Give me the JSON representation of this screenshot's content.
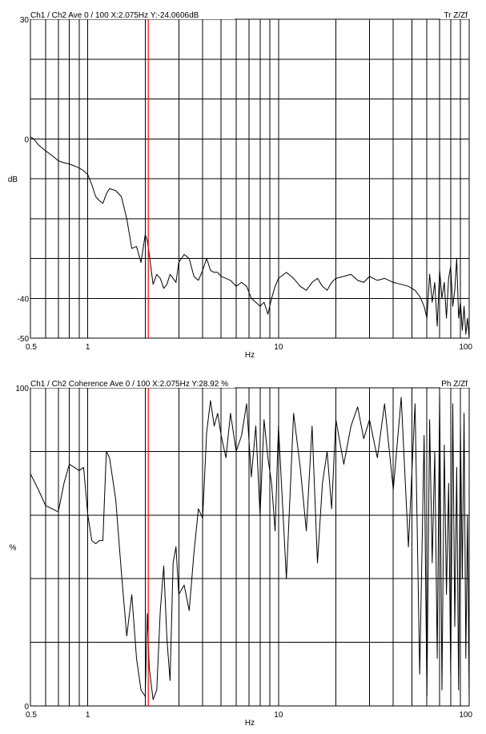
{
  "chart_data": [
    {
      "type": "line",
      "header": "Ch1 / Ch2   Ave 0 / 100   X:2.075Hz   Y:-24.0606dB",
      "mode_label": "Tr Z/Zf",
      "ylabel": "dB",
      "xlabel": "Hz",
      "x_scale": "log",
      "xlim": [
        0.5,
        100
      ],
      "ylim": [
        -50,
        30
      ],
      "y_ticks": [
        -50,
        -40,
        0,
        30
      ],
      "x_ticks": [
        0.5,
        1,
        10,
        100
      ],
      "y_grid": [
        -50,
        -40,
        -30,
        -20,
        -10,
        0,
        10,
        20,
        30
      ],
      "x_grid": [
        0.5,
        0.6,
        0.7,
        0.8,
        0.9,
        1,
        2,
        3,
        4,
        5,
        6,
        7,
        8,
        9,
        10,
        20,
        30,
        40,
        50,
        60,
        70,
        80,
        90,
        100
      ],
      "cursor_x": 2.075,
      "cursor_color": "#ff0000",
      "line_color": "#000000",
      "x": [
        0.5,
        0.52,
        0.55,
        0.6,
        0.65,
        0.7,
        0.75,
        0.8,
        0.85,
        0.9,
        0.95,
        1.0,
        1.05,
        1.1,
        1.15,
        1.2,
        1.25,
        1.3,
        1.4,
        1.5,
        1.6,
        1.7,
        1.8,
        1.9,
        2.0,
        2.05,
        2.1,
        2.2,
        2.3,
        2.4,
        2.5,
        2.6,
        2.7,
        2.8,
        2.9,
        3.0,
        3.2,
        3.4,
        3.6,
        3.8,
        4.0,
        4.2,
        4.4,
        4.6,
        4.8,
        5.0,
        5.3,
        5.6,
        6.0,
        6.4,
        6.8,
        7.2,
        7.6,
        8.0,
        8.4,
        8.8,
        9.2,
        9.6,
        10,
        11,
        12,
        13,
        14,
        15,
        16,
        17,
        18,
        19,
        20,
        22,
        24,
        26,
        28,
        30,
        33,
        36,
        40,
        44,
        48,
        52,
        55,
        58,
        60,
        62,
        64,
        66,
        68,
        70,
        72,
        74,
        76,
        78,
        80,
        82,
        84,
        86,
        88,
        90,
        92,
        94,
        96,
        98,
        100
      ],
      "y": [
        0.5,
        0,
        -1.5,
        -3,
        -4.2,
        -5.5,
        -6,
        -6.3,
        -6.8,
        -7.3,
        -8,
        -9,
        -11.5,
        -14.5,
        -15.5,
        -16.2,
        -13.8,
        -12.5,
        -13,
        -14.5,
        -20,
        -27.5,
        -27,
        -31,
        -24,
        -25.5,
        -29,
        -36.5,
        -34,
        -35,
        -37.5,
        -36.5,
        -34,
        -35,
        -36,
        -31,
        -29,
        -30,
        -34.5,
        -35.5,
        -33,
        -30,
        -33,
        -33.5,
        -33.5,
        -34.5,
        -35,
        -35.5,
        -37,
        -36,
        -37,
        -40,
        -41,
        -42,
        -41,
        -44,
        -40,
        -37,
        -35,
        -33.5,
        -35,
        -37,
        -38,
        -36,
        -35,
        -37,
        -38,
        -36,
        -35,
        -34.5,
        -34,
        -35.5,
        -36,
        -34.5,
        -35.5,
        -35,
        -36,
        -36.5,
        -37,
        -38,
        -39.5,
        -42,
        -45,
        -34,
        -41,
        -36,
        -47,
        -33,
        -40,
        -36,
        -45,
        -35,
        -32,
        -42,
        -38,
        -30,
        -45,
        -41,
        -48,
        -42,
        -49,
        -45,
        -50
      ]
    },
    {
      "type": "line",
      "header": "Ch1 / Ch2   Coherence Ave 0 / 100   X:2.075Hz   Y:28.92 %",
      "mode_label": "Ph Z/Zf",
      "ylabel": "%",
      "xlabel": "Hz",
      "x_scale": "log",
      "xlim": [
        0.5,
        100
      ],
      "ylim": [
        0,
        100
      ],
      "y_ticks": [
        0,
        100
      ],
      "x_ticks": [
        0.5,
        1,
        10,
        100
      ],
      "y_grid": [
        0,
        20,
        40,
        60,
        80,
        100
      ],
      "x_grid": [
        0.5,
        0.6,
        0.7,
        0.8,
        0.9,
        1,
        2,
        3,
        4,
        5,
        6,
        7,
        8,
        9,
        10,
        20,
        30,
        40,
        50,
        60,
        70,
        80,
        90,
        100
      ],
      "cursor_x": 2.075,
      "cursor_color": "#ff0000",
      "line_color": "#000000",
      "x": [
        0.5,
        0.55,
        0.6,
        0.65,
        0.7,
        0.75,
        0.8,
        0.85,
        0.9,
        0.95,
        1.0,
        1.05,
        1.1,
        1.15,
        1.2,
        1.25,
        1.3,
        1.4,
        1.5,
        1.6,
        1.7,
        1.8,
        1.9,
        2.0,
        2.05,
        2.1,
        2.2,
        2.3,
        2.4,
        2.5,
        2.6,
        2.7,
        2.8,
        2.9,
        3.0,
        3.2,
        3.4,
        3.6,
        3.8,
        4.0,
        4.2,
        4.4,
        4.6,
        4.8,
        5.0,
        5.3,
        5.6,
        6.0,
        6.4,
        6.8,
        7.2,
        7.6,
        8.0,
        8.4,
        8.8,
        9.2,
        9.6,
        10,
        11,
        12,
        13,
        14,
        15,
        16,
        17,
        18,
        19,
        20,
        22,
        24,
        26,
        28,
        30,
        33,
        36,
        40,
        44,
        48,
        52,
        55,
        58,
        60,
        62,
        64,
        66,
        68,
        70,
        72,
        74,
        76,
        78,
        80,
        82,
        84,
        86,
        88,
        90,
        92,
        94,
        96,
        98,
        100
      ],
      "y": [
        73,
        68,
        63,
        62,
        61,
        70,
        76,
        75,
        74,
        75,
        60,
        52,
        51,
        52,
        52,
        80,
        78,
        65,
        42,
        22,
        35,
        15,
        5,
        3,
        29,
        12,
        2,
        5,
        30,
        44,
        21,
        8,
        45,
        50,
        35,
        38,
        30,
        48,
        62,
        59,
        86,
        96,
        88,
        92,
        85,
        78,
        92,
        80,
        85,
        95,
        72,
        88,
        60,
        90,
        78,
        70,
        55,
        88,
        40,
        92,
        75,
        55,
        88,
        45,
        70,
        80,
        62,
        90,
        76,
        88,
        94,
        84,
        90,
        78,
        95,
        68,
        97,
        50,
        95,
        10,
        85,
        3,
        90,
        45,
        80,
        15,
        98,
        5,
        82,
        35,
        70,
        10,
        95,
        25,
        75,
        5,
        88,
        40,
        92,
        15,
        60,
        2
      ]
    }
  ]
}
